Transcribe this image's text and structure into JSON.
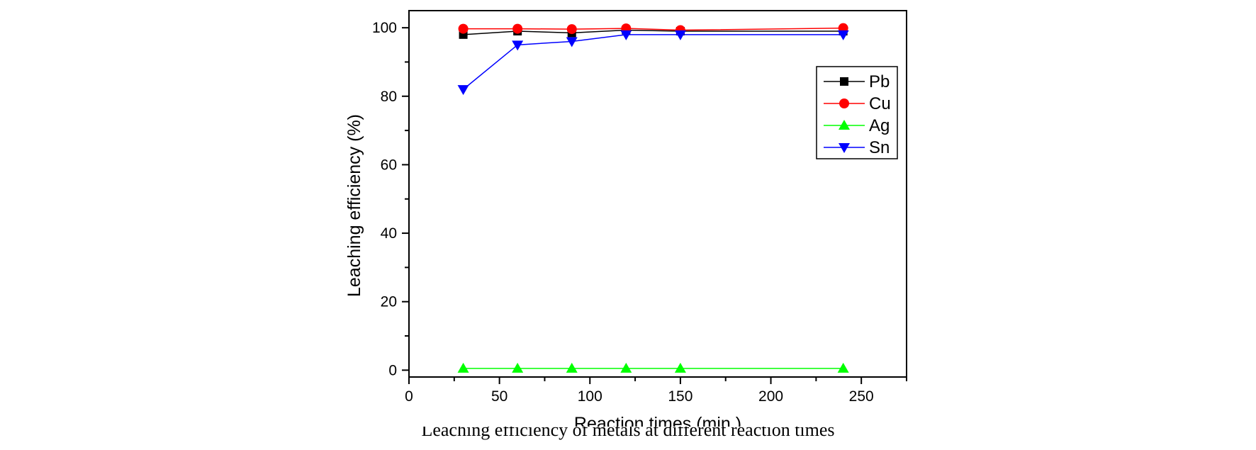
{
  "chart_data": {
    "type": "line",
    "title": "",
    "xlabel": "Reaction times (min.)",
    "ylabel": "Leaching efficiency (%)",
    "xlim": [
      0,
      275
    ],
    "ylim": [
      -2,
      105
    ],
    "xticks": [
      0,
      50,
      100,
      150,
      200,
      250
    ],
    "yticks": [
      0,
      20,
      40,
      60,
      80,
      100
    ],
    "legend_position": "upper-right",
    "x": [
      30,
      60,
      90,
      120,
      150,
      240
    ],
    "series": [
      {
        "name": "Pb",
        "color": "#000000",
        "marker": "square",
        "values": [
          98.0,
          99.0,
          98.5,
          99.3,
          99.0,
          99.0
        ]
      },
      {
        "name": "Cu",
        "color": "#ff0000",
        "marker": "circle",
        "values": [
          99.7,
          99.7,
          99.6,
          99.8,
          99.3,
          99.9
        ]
      },
      {
        "name": "Ag",
        "color": "#00ff00",
        "marker": "triangle-up",
        "values": [
          0.5,
          0.5,
          0.5,
          0.5,
          0.5,
          0.5
        ]
      },
      {
        "name": "Sn",
        "color": "#0000ff",
        "marker": "triangle-down",
        "values": [
          82.0,
          95.0,
          96.0,
          98.0,
          98.0,
          98.0
        ]
      }
    ]
  },
  "caption": "Leaching efficiency of metals at different reaction times"
}
